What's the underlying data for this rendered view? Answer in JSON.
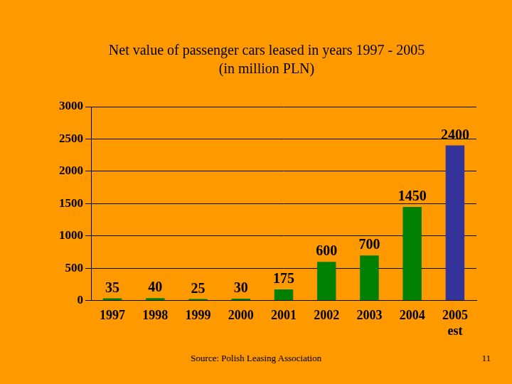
{
  "chart_data": {
    "type": "bar",
    "title": "Net value of passenger cars leased in years 1997 - 2005",
    "subtitle": "(in million PLN)",
    "categories": [
      "1997",
      "1998",
      "1999",
      "2000",
      "2001",
      "2002",
      "2003",
      "2004",
      "2005 est"
    ],
    "values": [
      35,
      40,
      25,
      30,
      175,
      600,
      700,
      1450,
      2400
    ],
    "colors": [
      "#008000",
      "#008000",
      "#008000",
      "#008000",
      "#008000",
      "#008000",
      "#008000",
      "#008000",
      "#333399"
    ],
    "ylim": [
      0,
      3000
    ],
    "yticks": [
      0,
      500,
      1000,
      1500,
      2000,
      2500,
      3000
    ],
    "grid": true,
    "data_labels": true,
    "annotations": [
      "Source: Polish Leasing Association",
      "11"
    ]
  }
}
